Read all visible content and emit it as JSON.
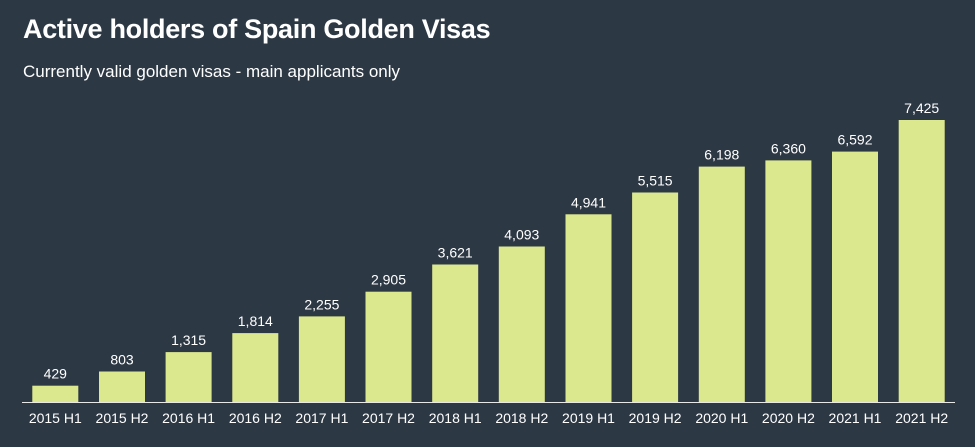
{
  "header": {
    "title": "Active holders of Spain Golden Visas",
    "subtitle": "Currently valid golden visas - main applicants only"
  },
  "colors": {
    "background": "#2d3845",
    "bar": "#dce88e",
    "axis": "#e8e8e8",
    "text": "#ffffff"
  },
  "chart_data": {
    "type": "bar",
    "title": "Active holders of Spain Golden Visas",
    "subtitle": "Currently valid golden visas - main applicants only",
    "categories": [
      "2015 H1",
      "2015 H2",
      "2016 H1",
      "2016 H2",
      "2017 H1",
      "2017 H2",
      "2018 H1",
      "2018 H2",
      "2019 H1",
      "2019 H2",
      "2020 H1",
      "2020 H2",
      "2021 H1",
      "2021 H2"
    ],
    "values": [
      429,
      803,
      1315,
      1814,
      2255,
      2905,
      3621,
      4093,
      4941,
      5515,
      6198,
      6360,
      6592,
      7425
    ],
    "data_labels": [
      "429",
      "803",
      "1,315",
      "1,814",
      "2,255",
      "2,905",
      "3,621",
      "4,093",
      "4,941",
      "5,515",
      "6,198",
      "6,360",
      "6,592",
      "7,425"
    ],
    "xlabel": "",
    "ylabel": "",
    "ylim": [
      0,
      7425
    ],
    "grid": false,
    "legend": "none"
  }
}
